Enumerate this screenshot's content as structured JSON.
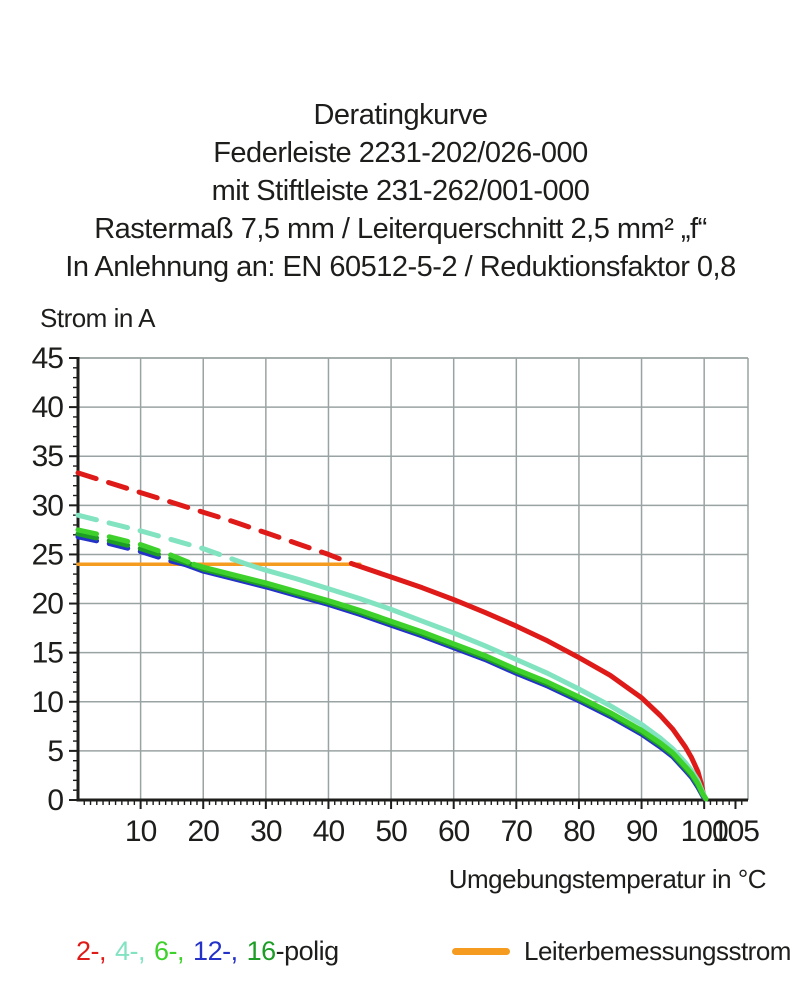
{
  "title_block": {
    "lines": [
      "Deratingkurve",
      "Federleiste 2231-202/026-000",
      "mit Stiftleiste 231-262/001-000",
      "Rastermaß 7,5 mm / Leiterquerschnitt 2,5 mm² „f“",
      "In Anlehnung an: EN 60512-5-2 / Reduktionsfaktor 0,8"
    ]
  },
  "chart_data": {
    "type": "line",
    "ylabel": "Strom in A",
    "xlabel": "Umgebungstemperatur in °C",
    "xlim": [
      0,
      107
    ],
    "ylim": [
      0,
      45
    ],
    "x_major_ticks": [
      10,
      20,
      30,
      40,
      50,
      60,
      70,
      80,
      90,
      100,
      105
    ],
    "x_grid_ticks": [
      10,
      20,
      30,
      40,
      50,
      60,
      70,
      80,
      90,
      100
    ],
    "y_major_ticks": [
      0,
      5,
      10,
      15,
      20,
      25,
      30,
      35,
      40,
      45
    ],
    "minor_tick_step": 1,
    "grid": true,
    "grid_color": "#9aa3a3",
    "axis_color": "#1d1d1b",
    "line_width": 5,
    "dash_pattern": "19 13",
    "series": [
      {
        "name": "2-polig",
        "color": "#df1b19",
        "style": "dashed-then-solid",
        "dash_until_x": 44,
        "points": [
          [
            0,
            33.3
          ],
          [
            5,
            32.3
          ],
          [
            10,
            31.3
          ],
          [
            15,
            30.3
          ],
          [
            20,
            29.3
          ],
          [
            25,
            28.3
          ],
          [
            30,
            27.2
          ],
          [
            35,
            26.1
          ],
          [
            40,
            25.0
          ],
          [
            44,
            24.0
          ],
          [
            50,
            22.7
          ],
          [
            55,
            21.6
          ],
          [
            60,
            20.4
          ],
          [
            65,
            19.1
          ],
          [
            70,
            17.7
          ],
          [
            75,
            16.2
          ],
          [
            80,
            14.5
          ],
          [
            85,
            12.7
          ],
          [
            90,
            10.4
          ],
          [
            93,
            8.6
          ],
          [
            95,
            7.2
          ],
          [
            97,
            5.4
          ],
          [
            98,
            4.3
          ],
          [
            99,
            2.9
          ],
          [
            99.6,
            1.5
          ],
          [
            100,
            0.2
          ]
        ]
      },
      {
        "name": "4-polig",
        "color": "#82e3c1",
        "style": "dashed-then-solid",
        "dash_until_x": 27,
        "points": [
          [
            0,
            29.0
          ],
          [
            5,
            28.2
          ],
          [
            10,
            27.4
          ],
          [
            15,
            26.5
          ],
          [
            20,
            25.6
          ],
          [
            27,
            24.0
          ],
          [
            30,
            23.4
          ],
          [
            35,
            22.5
          ],
          [
            40,
            21.5
          ],
          [
            45,
            20.5
          ],
          [
            50,
            19.4
          ],
          [
            55,
            18.2
          ],
          [
            60,
            17.0
          ],
          [
            65,
            15.7
          ],
          [
            70,
            14.3
          ],
          [
            75,
            12.9
          ],
          [
            80,
            11.3
          ],
          [
            85,
            9.6
          ],
          [
            90,
            7.7
          ],
          [
            93,
            6.3
          ],
          [
            95,
            5.2
          ],
          [
            97,
            3.8
          ],
          [
            98,
            3.0
          ],
          [
            99,
            2.0
          ],
          [
            99.7,
            0.9
          ],
          [
            100.2,
            0.2
          ]
        ]
      },
      {
        "name": "12-polig",
        "color": "#2432c8",
        "style": "dashed-then-solid",
        "dash_until_x": 17,
        "points": [
          [
            0,
            26.8
          ],
          [
            5,
            26.1
          ],
          [
            10,
            25.3
          ],
          [
            15,
            24.3
          ],
          [
            17,
            24.0
          ],
          [
            20,
            23.3
          ],
          [
            25,
            22.5
          ],
          [
            30,
            21.7
          ],
          [
            35,
            20.8
          ],
          [
            40,
            19.9
          ],
          [
            45,
            18.9
          ],
          [
            50,
            17.8
          ],
          [
            55,
            16.7
          ],
          [
            60,
            15.5
          ],
          [
            65,
            14.3
          ],
          [
            70,
            12.9
          ],
          [
            75,
            11.6
          ],
          [
            80,
            10.1
          ],
          [
            85,
            8.5
          ],
          [
            90,
            6.7
          ],
          [
            93,
            5.4
          ],
          [
            95,
            4.4
          ],
          [
            97,
            3.0
          ],
          [
            98,
            2.3
          ],
          [
            99,
            1.3
          ],
          [
            99.8,
            0.4
          ],
          [
            100.2,
            0.1
          ]
        ]
      },
      {
        "name": "16-polig",
        "color": "#1d9d26",
        "style": "dashed-then-solid",
        "dash_until_x": 18,
        "points": [
          [
            0,
            27.1
          ],
          [
            5,
            26.4
          ],
          [
            10,
            25.6
          ],
          [
            15,
            24.6
          ],
          [
            18,
            24.0
          ],
          [
            20,
            23.5
          ],
          [
            25,
            22.7
          ],
          [
            30,
            21.9
          ],
          [
            35,
            21.0
          ],
          [
            40,
            20.1
          ],
          [
            45,
            19.1
          ],
          [
            50,
            18.0
          ],
          [
            55,
            16.9
          ],
          [
            60,
            15.7
          ],
          [
            65,
            14.5
          ],
          [
            70,
            13.1
          ],
          [
            75,
            11.8
          ],
          [
            80,
            10.3
          ],
          [
            85,
            8.7
          ],
          [
            90,
            6.9
          ],
          [
            93,
            5.6
          ],
          [
            95,
            4.6
          ],
          [
            97,
            3.2
          ],
          [
            98,
            2.5
          ],
          [
            99,
            1.5
          ],
          [
            99.8,
            0.5
          ],
          [
            100.3,
            0.1
          ]
        ]
      },
      {
        "name": "6-polig",
        "color": "#3fd12b",
        "style": "dashed-then-solid",
        "dash_until_x": 18.5,
        "points": [
          [
            0,
            27.5
          ],
          [
            5,
            26.8
          ],
          [
            10,
            26.0
          ],
          [
            15,
            24.9
          ],
          [
            18.5,
            24.0
          ],
          [
            20,
            23.7
          ],
          [
            25,
            22.9
          ],
          [
            30,
            22.1
          ],
          [
            35,
            21.2
          ],
          [
            40,
            20.3
          ],
          [
            45,
            19.3
          ],
          [
            50,
            18.2
          ],
          [
            55,
            17.1
          ],
          [
            60,
            15.9
          ],
          [
            65,
            14.7
          ],
          [
            70,
            13.3
          ],
          [
            75,
            12.0
          ],
          [
            80,
            10.5
          ],
          [
            85,
            8.9
          ],
          [
            90,
            7.1
          ],
          [
            93,
            5.8
          ],
          [
            95,
            4.8
          ],
          [
            97,
            3.4
          ],
          [
            98,
            2.7
          ],
          [
            99,
            1.7
          ],
          [
            99.8,
            0.6
          ],
          [
            100.3,
            0.1
          ]
        ]
      }
    ],
    "reference_line": {
      "label": "Leiterbemessungsstrom",
      "color": "#f59b1f",
      "y": 24,
      "x_from": 0,
      "x_to": 45
    }
  },
  "legend": {
    "poles": {
      "items": [
        {
          "text": "2-,",
          "color": "#df1b19"
        },
        {
          "text": "4-,",
          "color": "#82e3c1"
        },
        {
          "text": "6-,",
          "color": "#3fd12b"
        },
        {
          "text": "12-,",
          "color": "#2432c8"
        },
        {
          "text": "16",
          "color": "#1d9d26"
        }
      ],
      "suffix": "-polig"
    },
    "reference": {
      "label": "Leiterbemessungsstrom",
      "color": "#f59b1f"
    }
  }
}
